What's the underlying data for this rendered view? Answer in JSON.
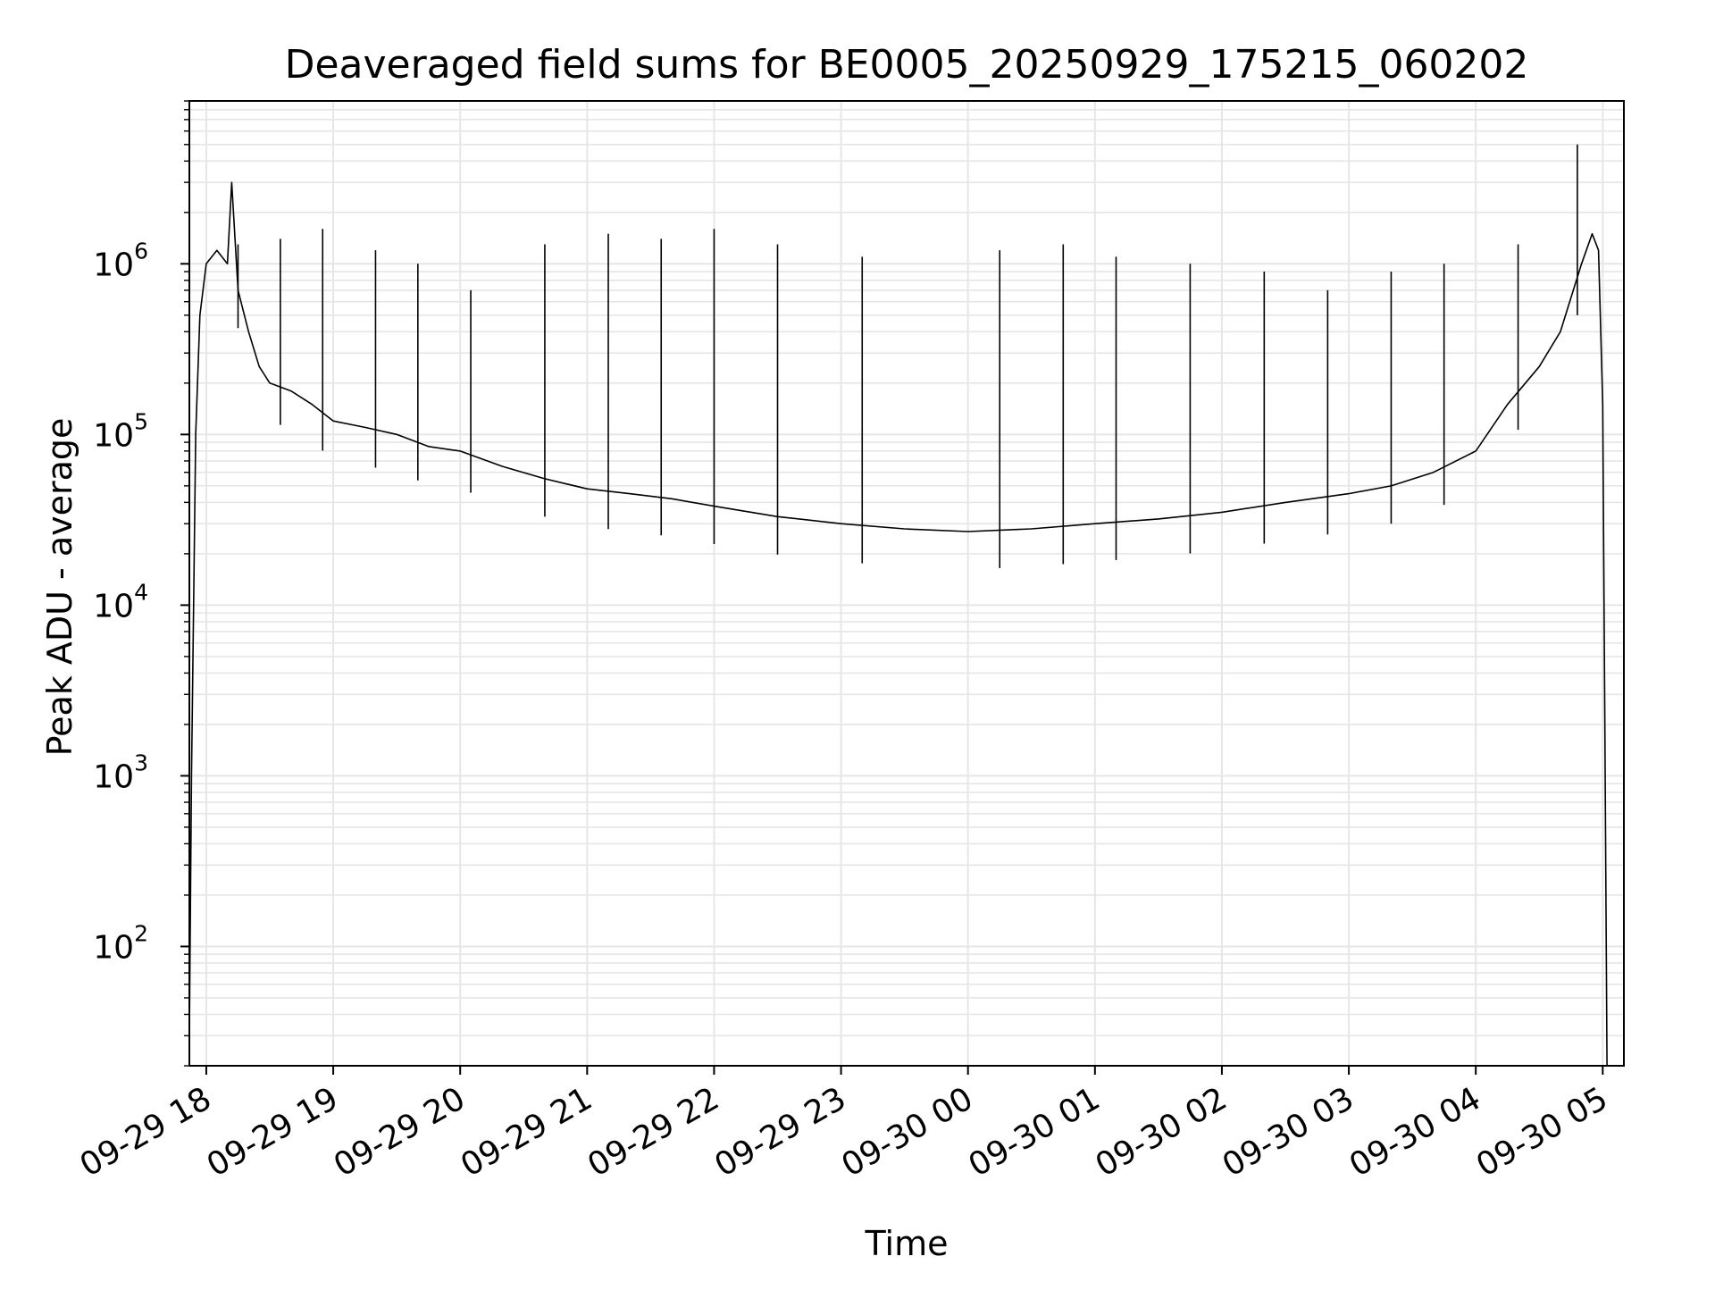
{
  "chart_data": {
    "type": "line",
    "title": "Deaveraged field sums for BE0005_20250929_175215_060202",
    "xlabel": "Time",
    "ylabel": "Peak ADU - average",
    "yscale": "log",
    "ylim": [
      20,
      9000000
    ],
    "xlim": [
      "09-29 17:52",
      "09-30 05:10"
    ],
    "grid": true,
    "x_ticks": [
      "09-29 18",
      "09-29 19",
      "09-29 20",
      "09-29 21",
      "09-29 22",
      "09-29 23",
      "09-30 00",
      "09-30 01",
      "09-30 02",
      "09-30 03",
      "09-30 04",
      "09-30 05"
    ],
    "y_ticks": [
      {
        "base": "10",
        "exp": "2",
        "value": 100
      },
      {
        "base": "10",
        "exp": "3",
        "value": 1000
      },
      {
        "base": "10",
        "exp": "4",
        "value": 10000
      },
      {
        "base": "10",
        "exp": "5",
        "value": 100000
      },
      {
        "base": "10",
        "exp": "6",
        "value": 1000000
      }
    ],
    "series": [
      {
        "color": "#000000",
        "x": [
          "09-29 17:52",
          "09-29 17:53",
          "09-29 17:55",
          "09-29 17:57",
          "09-29 18:00",
          "09-29 18:05",
          "09-29 18:10",
          "09-29 18:12",
          "09-29 18:15",
          "09-29 18:20",
          "09-29 18:25",
          "09-29 18:30",
          "09-29 18:40",
          "09-29 18:50",
          "09-29 19:00",
          "09-29 19:15",
          "09-29 19:30",
          "09-29 19:45",
          "09-29 20:00",
          "09-29 20:20",
          "09-29 20:40",
          "09-29 21:00",
          "09-29 21:20",
          "09-29 21:40",
          "09-29 22:00",
          "09-29 22:30",
          "09-29 23:00",
          "09-29 23:30",
          "09-30 00:00",
          "09-30 00:30",
          "09-30 01:00",
          "09-30 01:30",
          "09-30 02:00",
          "09-30 02:30",
          "09-30 03:00",
          "09-30 03:20",
          "09-30 03:40",
          "09-30 04:00",
          "09-30 04:15",
          "09-30 04:30",
          "09-30 04:40",
          "09-30 04:50",
          "09-30 04:55",
          "09-30 04:58",
          "09-30 05:00",
          "09-30 05:01",
          "09-30 05:02"
        ],
        "y": [
          30,
          1000,
          100000,
          500000,
          1000000,
          1200000,
          1000000,
          3000000,
          700000,
          400000,
          250000,
          200000,
          180000,
          150000,
          120000,
          110000,
          100000,
          85000,
          80000,
          65000,
          55000,
          48000,
          45000,
          42000,
          38000,
          33000,
          30000,
          28000,
          27000,
          28000,
          30000,
          32000,
          35000,
          40000,
          45000,
          50000,
          60000,
          80000,
          150000,
          250000,
          400000,
          1000000,
          1500000,
          1200000,
          150000,
          2000,
          20
        ],
        "spikes": [
          {
            "x": "09-29 18:15",
            "y": 1300000
          },
          {
            "x": "09-29 18:35",
            "y": 1400000
          },
          {
            "x": "09-29 18:55",
            "y": 1600000
          },
          {
            "x": "09-29 19:20",
            "y": 1200000
          },
          {
            "x": "09-29 19:40",
            "y": 1000000
          },
          {
            "x": "09-29 20:05",
            "y": 700000
          },
          {
            "x": "09-29 20:40",
            "y": 1300000
          },
          {
            "x": "09-29 21:10",
            "y": 1500000
          },
          {
            "x": "09-29 21:35",
            "y": 1400000
          },
          {
            "x": "09-29 22:00",
            "y": 1600000
          },
          {
            "x": "09-29 22:30",
            "y": 1300000
          },
          {
            "x": "09-29 23:10",
            "y": 1100000
          },
          {
            "x": "09-30 00:15",
            "y": 1200000
          },
          {
            "x": "09-30 00:45",
            "y": 1300000
          },
          {
            "x": "09-30 01:10",
            "y": 1100000
          },
          {
            "x": "09-30 01:45",
            "y": 1000000
          },
          {
            "x": "09-30 02:20",
            "y": 900000
          },
          {
            "x": "09-30 02:50",
            "y": 700000
          },
          {
            "x": "09-30 03:20",
            "y": 900000
          },
          {
            "x": "09-30 03:45",
            "y": 1000000
          },
          {
            "x": "09-30 04:20",
            "y": 1300000
          },
          {
            "x": "09-30 04:48",
            "y": 5000000
          }
        ]
      }
    ]
  }
}
